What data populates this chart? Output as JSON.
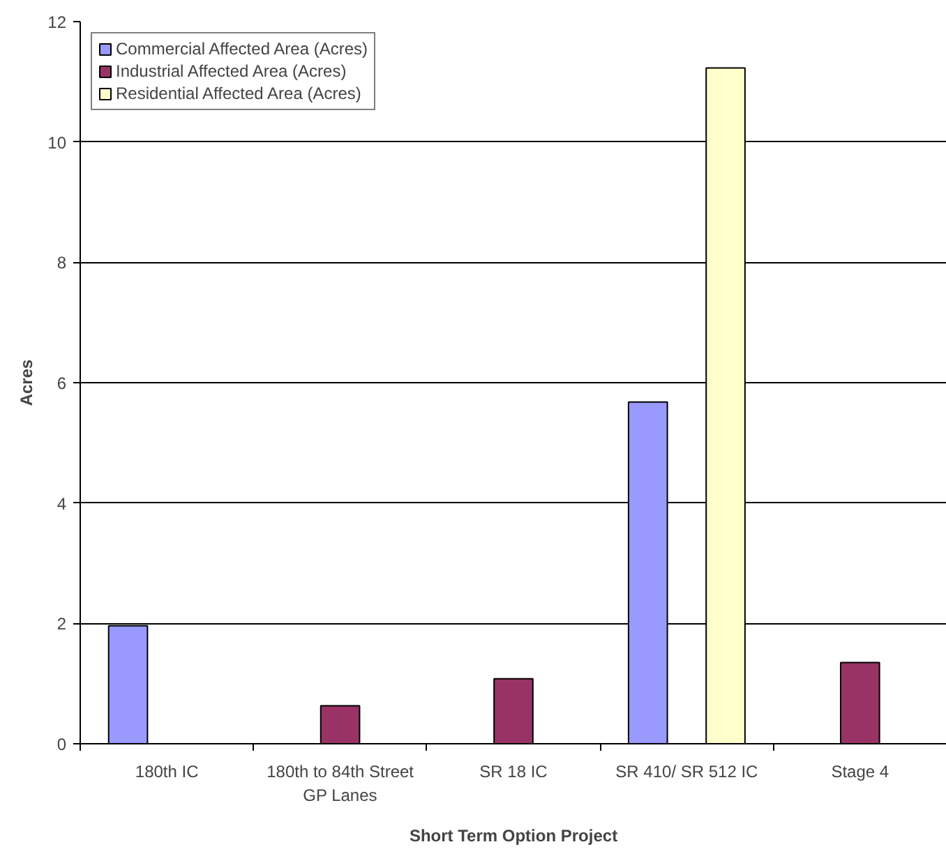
{
  "chart_data": {
    "type": "bar",
    "xlabel": "Short Term Option Project",
    "ylabel": "Acres",
    "categories": [
      "180th IC",
      "180th to 84th Street GP Lanes",
      "SR 18 IC",
      "SR 410/ SR 512 IC",
      "Stage 4"
    ],
    "series": [
      {
        "name": "Commercial Affected Area (Acres)",
        "color": "#9999ff",
        "values": [
          1.96,
          null,
          null,
          5.68,
          null
        ]
      },
      {
        "name": "Industrial Affected Area (Acres)",
        "color": "#993366",
        "values": [
          null,
          0.63,
          1.08,
          null,
          1.35
        ]
      },
      {
        "name": "Residential Affected Area (Acres)",
        "color": "#ffffcc",
        "values": [
          null,
          null,
          null,
          11.23,
          null
        ]
      }
    ],
    "ylim": [
      0,
      12
    ],
    "yticks": [
      0,
      2,
      4,
      6,
      8,
      10,
      12
    ],
    "grid": "y",
    "legend": "top left"
  }
}
